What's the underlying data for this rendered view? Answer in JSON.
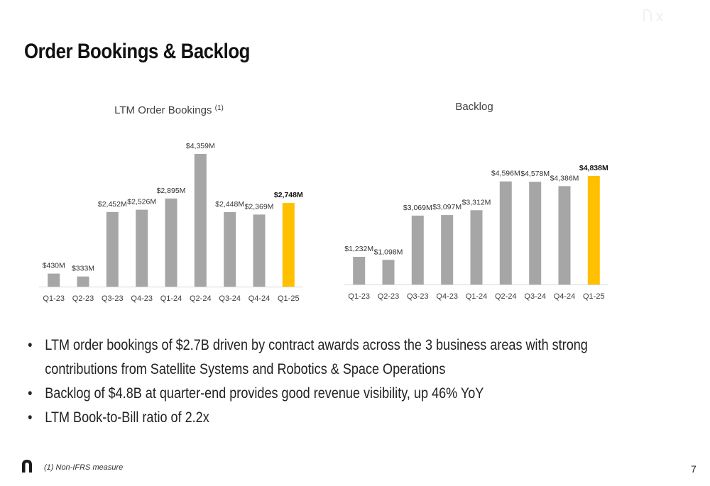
{
  "page": {
    "title": "Order Bookings & Backlog",
    "page_number": "7",
    "footnote": "(1) Non-IFRS measure"
  },
  "colors": {
    "bar": "#a6a6a6",
    "highlight": "#ffc000",
    "axis": "#d9d9d9"
  },
  "bullets": [
    "LTM order bookings of $2.7B driven by contract awards across the 3 business areas with strong contributions from Satellite Systems and Robotics & Space Operations",
    "Backlog of $4.8B at quarter-end provides good revenue visibility, up 46% YoY",
    "LTM Book-to-Bill ratio of 2.2x"
  ],
  "chart_data": [
    {
      "type": "bar",
      "title": "LTM Order Bookings",
      "title_superscript": "(1)",
      "categories": [
        "Q1-23",
        "Q2-23",
        "Q3-23",
        "Q4-23",
        "Q1-24",
        "Q2-24",
        "Q3-24",
        "Q4-24",
        "Q1-25"
      ],
      "values": [
        430,
        333,
        2452,
        2526,
        2895,
        4359,
        2448,
        2369,
        2748
      ],
      "labels": [
        "$430M",
        "$333M",
        "$2,452M",
        "$2,526M",
        "$2,895M",
        "$4,359M",
        "$2,448M",
        "$2,369M",
        "$2,748M"
      ],
      "highlight_index": 8,
      "ylim": [
        0,
        4359
      ],
      "grid": false
    },
    {
      "type": "bar",
      "title": "Backlog",
      "title_superscript": "",
      "categories": [
        "Q1-23",
        "Q2-23",
        "Q3-23",
        "Q4-23",
        "Q1-24",
        "Q2-24",
        "Q3-24",
        "Q4-24",
        "Q1-25"
      ],
      "values": [
        1232,
        1098,
        3069,
        3097,
        3312,
        4596,
        4578,
        4386,
        4838
      ],
      "labels": [
        "$1,232M",
        "$1,098M",
        "$3,069M",
        "$3,097M",
        "$3,312M",
        "$4,596M",
        "$4,578M",
        "$4,386M",
        "$4,838M"
      ],
      "highlight_index": 8,
      "ylim": [
        0,
        4838
      ],
      "grid": false
    }
  ]
}
